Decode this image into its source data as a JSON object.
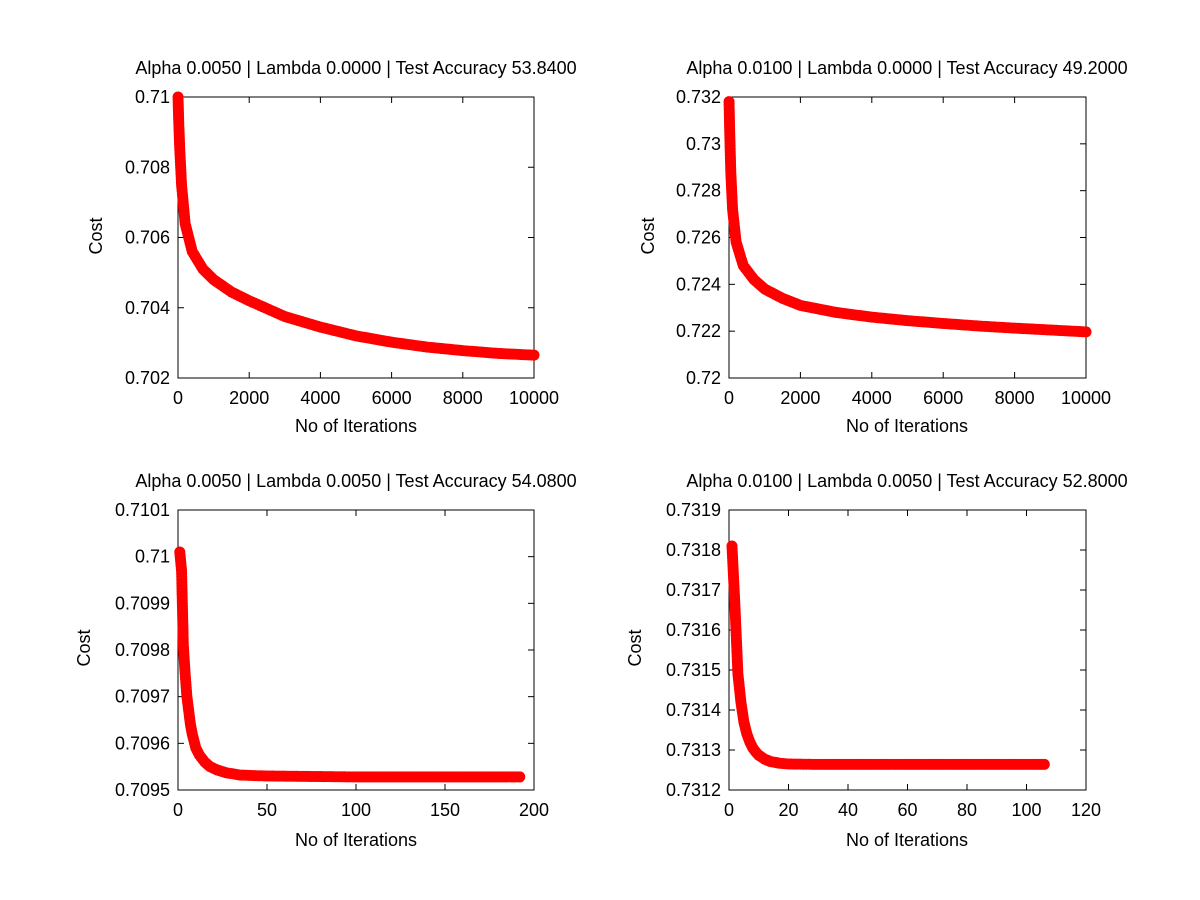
{
  "chart_data": [
    {
      "type": "line",
      "title": "Alpha 0.0050 | Lambda 0.0000 | Test Accuracy 53.8400",
      "xlabel": "No of Iterations",
      "ylabel": "Cost",
      "xlim": [
        0,
        10000
      ],
      "ylim": [
        0.702,
        0.71
      ],
      "xticks": [
        0,
        2000,
        4000,
        6000,
        8000,
        10000
      ],
      "xtick_labels": [
        "0",
        "2000",
        "4000",
        "6000",
        "8000",
        "10000"
      ],
      "yticks": [
        0.702,
        0.704,
        0.706,
        0.708,
        0.71
      ],
      "ytick_labels": [
        "0.702",
        "0.704",
        "0.706",
        "0.708",
        "0.71"
      ],
      "color": "#ff0000",
      "series": [
        {
          "points": [
            [
              1,
              0.71
            ],
            [
              20,
              0.7093
            ],
            [
              50,
              0.7085
            ],
            [
              100,
              0.7075
            ],
            [
              200,
              0.7064
            ],
            [
              400,
              0.7056
            ],
            [
              700,
              0.7051
            ],
            [
              1000,
              0.7048
            ],
            [
              1500,
              0.70445
            ],
            [
              2000,
              0.7042
            ],
            [
              3000,
              0.70375
            ],
            [
              4000,
              0.70345
            ],
            [
              5000,
              0.7032
            ],
            [
              6000,
              0.70302
            ],
            [
              7000,
              0.70288
            ],
            [
              8000,
              0.70278
            ],
            [
              9000,
              0.7027
            ],
            [
              10000,
              0.70265
            ]
          ]
        }
      ]
    },
    {
      "type": "line",
      "title": "Alpha 0.0100 | Lambda 0.0000 | Test Accuracy 49.2000",
      "xlabel": "No of Iterations",
      "ylabel": "Cost",
      "xlim": [
        0,
        10000
      ],
      "ylim": [
        0.72,
        0.732
      ],
      "xticks": [
        0,
        2000,
        4000,
        6000,
        8000,
        10000
      ],
      "xtick_labels": [
        "0",
        "2000",
        "4000",
        "6000",
        "8000",
        "10000"
      ],
      "yticks": [
        0.72,
        0.722,
        0.724,
        0.726,
        0.728,
        0.73,
        0.732
      ],
      "ytick_labels": [
        "0.72",
        "0.722",
        "0.724",
        "0.726",
        "0.728",
        "0.73",
        "0.732"
      ],
      "color": "#ff0000",
      "series": [
        {
          "points": [
            [
              1,
              0.7318
            ],
            [
              20,
              0.7305
            ],
            [
              50,
              0.7288
            ],
            [
              100,
              0.7272
            ],
            [
              200,
              0.7258
            ],
            [
              400,
              0.7248
            ],
            [
              700,
              0.7242
            ],
            [
              1000,
              0.7238
            ],
            [
              1500,
              0.7234
            ],
            [
              2000,
              0.7231
            ],
            [
              3000,
              0.7228
            ],
            [
              4000,
              0.7226
            ],
            [
              5000,
              0.72245
            ],
            [
              6000,
              0.72233
            ],
            [
              7000,
              0.72222
            ],
            [
              8000,
              0.72213
            ],
            [
              9000,
              0.72205
            ],
            [
              10000,
              0.72197
            ]
          ]
        }
      ]
    },
    {
      "type": "line",
      "title": "Alpha 0.0050 | Lambda 0.0050 | Test Accuracy 54.0800",
      "xlabel": "No of Iterations",
      "ylabel": "Cost",
      "xlim": [
        0,
        200
      ],
      "ylim": [
        0.7095,
        0.7101
      ],
      "xticks": [
        0,
        50,
        100,
        150,
        200
      ],
      "xtick_labels": [
        "0",
        "50",
        "100",
        "150",
        "200"
      ],
      "yticks": [
        0.7095,
        0.7096,
        0.7097,
        0.7098,
        0.7099,
        0.71,
        0.7101
      ],
      "ytick_labels": [
        "0.7095",
        "0.7096",
        "0.7097",
        "0.7098",
        "0.7099",
        "0.71",
        "0.7101"
      ],
      "color": "#ff0000",
      "series": [
        {
          "points": [
            [
              1,
              0.71001
            ],
            [
              2,
              0.70997
            ],
            [
              3,
              0.70981
            ],
            [
              4,
              0.70975
            ],
            [
              5,
              0.7097
            ],
            [
              6,
              0.70967
            ],
            [
              7,
              0.70964
            ],
            [
              8,
              0.70962
            ],
            [
              9,
              0.709605
            ],
            [
              10,
              0.70959
            ],
            [
              12,
              0.709575
            ],
            [
              15,
              0.70956
            ],
            [
              18,
              0.70955
            ],
            [
              22,
              0.709543
            ],
            [
              27,
              0.709537
            ],
            [
              35,
              0.709532
            ],
            [
              50,
              0.70953
            ],
            [
              75,
              0.709529
            ],
            [
              100,
              0.709528
            ],
            [
              150,
              0.709528
            ],
            [
              192,
              0.709528
            ]
          ]
        }
      ]
    },
    {
      "type": "line",
      "title": "Alpha 0.0100 | Lambda 0.0050 | Test Accuracy 52.8000",
      "xlabel": "No of Iterations",
      "ylabel": "Cost",
      "xlim": [
        0,
        120
      ],
      "ylim": [
        0.7312,
        0.7319
      ],
      "xticks": [
        0,
        20,
        40,
        60,
        80,
        100,
        120
      ],
      "xtick_labels": [
        "0",
        "20",
        "40",
        "60",
        "80",
        "100",
        "120"
      ],
      "yticks": [
        0.7312,
        0.7313,
        0.7314,
        0.7315,
        0.7316,
        0.7317,
        0.7318,
        0.7319
      ],
      "ytick_labels": [
        "0.7312",
        "0.7313",
        "0.7314",
        "0.7315",
        "0.7316",
        "0.7317",
        "0.7318",
        "0.7319"
      ],
      "color": "#ff0000",
      "series": [
        {
          "points": [
            [
              1,
              0.73181
            ],
            [
              2,
              0.73166
            ],
            [
              3,
              0.73149
            ],
            [
              4,
              0.73142
            ],
            [
              5,
              0.73137
            ],
            [
              6,
              0.73134
            ],
            [
              7,
              0.73132
            ],
            [
              8,
              0.731305
            ],
            [
              9,
              0.731295
            ],
            [
              10,
              0.731287
            ],
            [
              12,
              0.731277
            ],
            [
              14,
              0.731271
            ],
            [
              17,
              0.731267
            ],
            [
              20,
              0.731265
            ],
            [
              30,
              0.731264
            ],
            [
              50,
              0.731264
            ],
            [
              80,
              0.731264
            ],
            [
              106,
              0.731264
            ]
          ]
        }
      ]
    }
  ]
}
